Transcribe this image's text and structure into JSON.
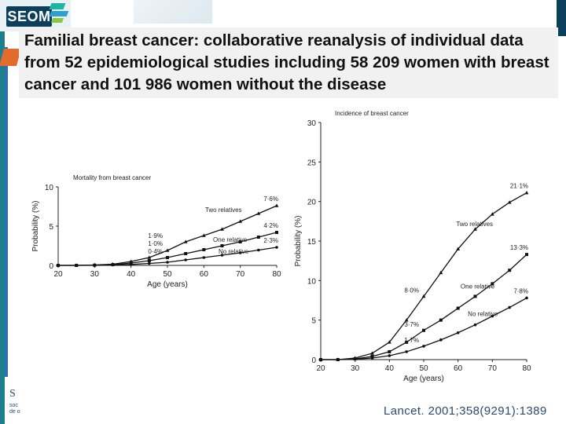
{
  "logo": {
    "text": "SEOM"
  },
  "title": "Familial breast cancer: collaborative reanalysis of individual data from 52 epidemiological studies including 58 209 women with breast cancer and 101 986 women without the disease",
  "credit": "Lancet. 2001;358(9291):1389",
  "footer_mark": {
    "letter": "S",
    "line1": "soc",
    "line2": "de o"
  },
  "colors": {
    "line": "#111111",
    "logo_bg": "#0b3f5c",
    "teal": "#1d7e8e",
    "accent_orange": "#e36b2e"
  },
  "chart_data": [
    {
      "type": "line",
      "title": "Mortality from breast cancer",
      "xlabel": "Age (years)",
      "ylabel": "Probability (%)",
      "xlim": [
        20,
        80
      ],
      "ylim": [
        0,
        10
      ],
      "xticks": [
        20,
        30,
        40,
        50,
        60,
        70,
        80
      ],
      "yticks": [
        0,
        5,
        10
      ],
      "series": [
        {
          "name": "Two relatives",
          "marker": "triangle",
          "x": [
            20,
            25,
            30,
            35,
            40,
            45,
            50,
            55,
            60,
            65,
            70,
            75,
            80
          ],
          "y": [
            0,
            0,
            0.05,
            0.15,
            0.5,
            1.0,
            1.9,
            3.0,
            3.8,
            4.6,
            5.6,
            6.6,
            7.6
          ]
        },
        {
          "name": "One relative",
          "marker": "square",
          "x": [
            20,
            25,
            30,
            35,
            40,
            45,
            50,
            55,
            60,
            65,
            70,
            75,
            80
          ],
          "y": [
            0,
            0,
            0.03,
            0.1,
            0.3,
            0.6,
            1.0,
            1.5,
            2.0,
            2.5,
            3.0,
            3.6,
            4.2
          ]
        },
        {
          "name": "No relative",
          "marker": "circle",
          "x": [
            20,
            25,
            30,
            35,
            40,
            45,
            50,
            55,
            60,
            65,
            70,
            75,
            80
          ],
          "y": [
            0,
            0,
            0.01,
            0.05,
            0.12,
            0.25,
            0.4,
            0.7,
            1.0,
            1.3,
            1.6,
            1.95,
            2.3
          ]
        }
      ],
      "annotations": [
        {
          "text": "7·6%",
          "x": 80,
          "y": 7.6
        },
        {
          "text": "4·2%",
          "x": 80,
          "y": 4.2
        },
        {
          "text": "2·3%",
          "x": 80,
          "y": 2.3
        },
        {
          "text": "1·9%",
          "x": 50,
          "y": 1.9
        },
        {
          "text": "1·0%",
          "x": 50,
          "y": 1.0
        },
        {
          "text": "0·4%",
          "x": 50,
          "y": 0.4
        }
      ]
    },
    {
      "type": "line",
      "title": "Incidence of breast cancer",
      "xlabel": "Age (years)",
      "ylabel": "Probability (%)",
      "xlim": [
        20,
        80
      ],
      "ylim": [
        0,
        30
      ],
      "xticks": [
        20,
        30,
        40,
        50,
        60,
        70,
        80
      ],
      "yticks": [
        0,
        5,
        10,
        15,
        20,
        25,
        30
      ],
      "series": [
        {
          "name": "Two relatives",
          "marker": "triangle",
          "x": [
            20,
            25,
            30,
            35,
            40,
            45,
            50,
            55,
            60,
            65,
            70,
            75,
            80
          ],
          "y": [
            0,
            0,
            0.2,
            0.8,
            2.2,
            5.0,
            8.0,
            11.0,
            14.0,
            16.5,
            18.4,
            19.9,
            21.1
          ]
        },
        {
          "name": "One relative",
          "marker": "square",
          "x": [
            20,
            25,
            30,
            35,
            40,
            45,
            50,
            55,
            60,
            65,
            70,
            75,
            80
          ],
          "y": [
            0,
            0,
            0.1,
            0.4,
            1.0,
            2.2,
            3.7,
            5.0,
            6.5,
            8.0,
            9.6,
            11.3,
            13.3
          ]
        },
        {
          "name": "No relative",
          "marker": "circle",
          "x": [
            20,
            25,
            30,
            35,
            40,
            45,
            50,
            55,
            60,
            65,
            70,
            75,
            80
          ],
          "y": [
            0,
            0,
            0.05,
            0.2,
            0.5,
            1.0,
            1.7,
            2.5,
            3.4,
            4.4,
            5.5,
            6.6,
            7.8
          ]
        }
      ],
      "annotations": [
        {
          "text": "21·1%",
          "x": 80,
          "y": 21.1
        },
        {
          "text": "13·3%",
          "x": 80,
          "y": 13.3
        },
        {
          "text": "7·8%",
          "x": 80,
          "y": 7.8
        },
        {
          "text": "8·0%",
          "x": 50,
          "y": 8.0
        },
        {
          "text": "3·7%",
          "x": 50,
          "y": 3.7
        },
        {
          "text": "1·7%",
          "x": 50,
          "y": 1.7
        }
      ]
    }
  ]
}
